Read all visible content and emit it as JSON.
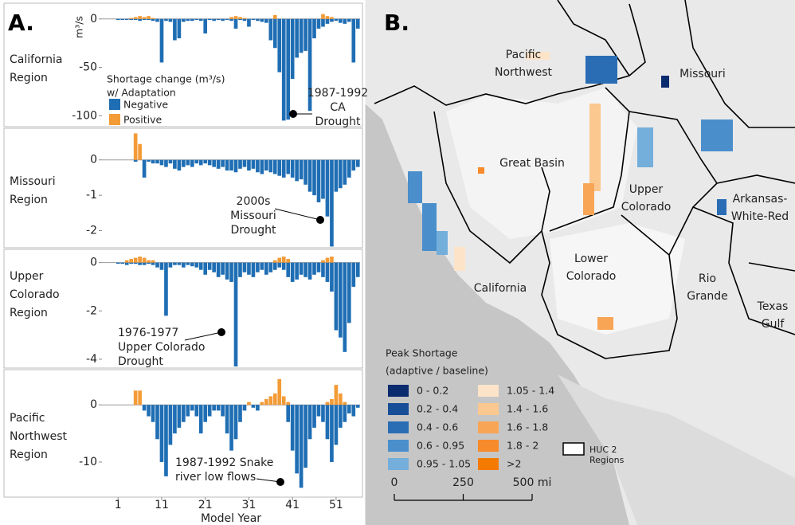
{
  "chart_data": [
    {
      "type": "bar",
      "panel_label": "A.",
      "region_label": [
        "California",
        "Region"
      ],
      "y_label": "m³/s",
      "legend_title": [
        "Shortage change (m³/s)",
        "w/ Adaptation"
      ],
      "xlim": [
        -2.7,
        56.5
      ],
      "ylim": [
        -108,
        13
      ],
      "yticks": [
        -100,
        -50,
        0
      ],
      "x": [
        1,
        2,
        3,
        4,
        5,
        6,
        7,
        8,
        9,
        10,
        11,
        12,
        13,
        14,
        15,
        16,
        17,
        18,
        19,
        20,
        21,
        22,
        23,
        24,
        25,
        26,
        27,
        28,
        29,
        30,
        31,
        32,
        33,
        34,
        35,
        36,
        37,
        38,
        39,
        40,
        41,
        42,
        43,
        44,
        45,
        46,
        47,
        48,
        49,
        50,
        51,
        52,
        53,
        54,
        55,
        56
      ],
      "series": [
        {
          "name": "Negative",
          "color": "#1f6eb4",
          "values": [
            -1,
            -1,
            -1,
            -1,
            -1,
            -2,
            -1,
            -1,
            -2,
            -3,
            -45,
            -2,
            -3,
            -22,
            -20,
            -3,
            -2,
            -2,
            -1,
            -2,
            -15,
            -1,
            -2,
            -1,
            -2,
            -1,
            -2,
            -10,
            -1,
            -2,
            -8,
            -1,
            -2,
            -3,
            -4,
            -22,
            -30,
            -55,
            -105,
            -104,
            -62,
            -40,
            -35,
            -33,
            -95,
            -20,
            -10,
            -8,
            -5,
            -3,
            -2,
            -4,
            -5,
            -3,
            -45,
            -10
          ]
        },
        {
          "name": "Positive",
          "color": "#f39b36",
          "values": [
            0,
            0,
            0,
            1,
            2,
            3,
            2,
            3,
            1,
            0,
            0,
            0,
            0,
            0,
            0,
            0,
            0,
            0,
            0,
            0,
            0,
            0,
            0,
            0,
            0,
            0,
            2,
            3,
            2,
            1,
            0,
            0,
            0,
            0,
            0,
            0,
            4,
            0,
            0,
            0,
            0,
            0,
            0,
            0,
            0,
            0,
            0,
            5,
            3,
            2,
            0,
            0,
            0,
            0,
            0,
            0
          ]
        }
      ],
      "annotations": [
        {
          "lines": [
            "1987-1992",
            "CA",
            "Drought"
          ]
        }
      ]
    },
    {
      "type": "bar",
      "region_label": [
        "Missouri",
        "Region"
      ],
      "xlim": [
        -2.7,
        56.5
      ],
      "ylim": [
        -2.35,
        0.85
      ],
      "yticks": [
        -2,
        -1,
        0
      ],
      "x": [
        1,
        2,
        3,
        4,
        5,
        6,
        7,
        8,
        9,
        10,
        11,
        12,
        13,
        14,
        15,
        16,
        17,
        18,
        19,
        20,
        21,
        22,
        23,
        24,
        25,
        26,
        27,
        28,
        29,
        30,
        31,
        32,
        33,
        34,
        35,
        36,
        37,
        38,
        39,
        40,
        41,
        42,
        43,
        44,
        45,
        46,
        47,
        48,
        49,
        50,
        51,
        52,
        53,
        54,
        55,
        56
      ],
      "series": [
        {
          "color": "#1f6eb4",
          "values": [
            0,
            0,
            0,
            0,
            -0.05,
            0,
            -0.5,
            -0.05,
            -0.1,
            -0.1,
            -0.15,
            -0.2,
            -0.1,
            -0.25,
            -0.3,
            -0.2,
            -0.15,
            -0.2,
            -0.1,
            -0.15,
            -0.1,
            -0.15,
            -0.2,
            -0.25,
            -0.2,
            -0.3,
            -0.3,
            -0.35,
            -0.25,
            -0.2,
            -0.3,
            -0.25,
            -0.35,
            -0.4,
            -0.3,
            -0.35,
            -0.4,
            -0.45,
            -0.5,
            -0.4,
            -0.5,
            -0.6,
            -0.55,
            -0.7,
            -0.9,
            -1.0,
            -1.2,
            -1.1,
            -1.6,
            -2.45,
            -0.9,
            -0.8,
            -0.7,
            -0.5,
            -0.3,
            -0.2
          ]
        },
        {
          "color": "#f39b36",
          "values": [
            0,
            0,
            0,
            0,
            0.75,
            0.45,
            0,
            0,
            0,
            0,
            0,
            0,
            0,
            0,
            0,
            0,
            0,
            0,
            0,
            0,
            0,
            0,
            0,
            0,
            0,
            0,
            0,
            0,
            0,
            0,
            0,
            0,
            0,
            0,
            0,
            0,
            0,
            0,
            0,
            0,
            0,
            0,
            0,
            0,
            0,
            0,
            0,
            0,
            0,
            0,
            0,
            0,
            0,
            0,
            0,
            0
          ]
        }
      ],
      "annotations": [
        {
          "lines": [
            "2000s",
            "Missouri",
            "Drought"
          ]
        }
      ]
    },
    {
      "type": "bar",
      "region_label": [
        "Upper",
        "Colorado",
        "Region"
      ],
      "xlim": [
        -2.7,
        56.5
      ],
      "ylim": [
        -4.3,
        0.45
      ],
      "yticks": [
        -4,
        -2,
        0
      ],
      "x": [
        1,
        2,
        3,
        4,
        5,
        6,
        7,
        8,
        9,
        10,
        11,
        12,
        13,
        14,
        15,
        16,
        17,
        18,
        19,
        20,
        21,
        22,
        23,
        24,
        25,
        26,
        27,
        28,
        29,
        30,
        31,
        32,
        33,
        34,
        35,
        36,
        37,
        38,
        39,
        40,
        41,
        42,
        43,
        44,
        45,
        46,
        47,
        48,
        49,
        50,
        51,
        52,
        53,
        54,
        55,
        56
      ],
      "series": [
        {
          "color": "#1f6eb4",
          "values": [
            -0.05,
            -0.05,
            -0.1,
            -0.05,
            -0.05,
            -0.1,
            -0.1,
            -0.05,
            -0.1,
            -0.2,
            -0.3,
            -2.2,
            -0.2,
            -0.1,
            -0.1,
            -0.2,
            -0.1,
            -0.15,
            -0.2,
            -0.3,
            -0.5,
            -0.3,
            -0.4,
            -0.6,
            -0.5,
            -0.7,
            -0.8,
            -4.3,
            -0.6,
            -0.4,
            -0.5,
            -0.6,
            -0.4,
            -0.3,
            -0.5,
            -0.4,
            -0.3,
            -0.2,
            -0.3,
            -0.6,
            -0.8,
            -0.7,
            -0.5,
            -0.6,
            -0.7,
            -0.5,
            -0.4,
            -0.6,
            -0.8,
            -1.2,
            -2.8,
            -3.1,
            -3.7,
            -2.5,
            -1.0,
            -0.6
          ]
        },
        {
          "color": "#f39b36",
          "values": [
            0,
            0,
            0.1,
            0.15,
            0.2,
            0.25,
            0.2,
            0.1,
            0.1,
            0,
            0,
            0,
            0,
            0,
            0,
            0,
            0,
            0,
            0,
            0,
            0,
            0,
            0,
            0,
            0,
            0,
            0,
            0,
            0,
            0,
            0,
            0,
            0,
            0,
            0,
            0,
            0.1,
            0.2,
            0.25,
            0.15,
            0,
            0,
            0,
            0,
            0,
            0,
            0,
            0.1,
            0.2,
            0.25,
            0,
            0,
            0,
            0,
            0,
            0
          ]
        }
      ],
      "annotations": [
        {
          "lines": [
            "1976-1977",
            "Upper Colorado",
            "Drought"
          ]
        }
      ]
    },
    {
      "type": "bar",
      "region_label": [
        "Pacific",
        "Northwest",
        "Region"
      ],
      "x_label": "Model Year",
      "xlim": [
        -2.7,
        56.5
      ],
      "ylim": [
        -15.3,
        5.6
      ],
      "yticks": [
        -10,
        0
      ],
      "xticks": [
        1,
        11,
        21,
        31,
        41,
        51
      ],
      "x": [
        1,
        2,
        3,
        4,
        5,
        6,
        7,
        8,
        9,
        10,
        11,
        12,
        13,
        14,
        15,
        16,
        17,
        18,
        19,
        20,
        21,
        22,
        23,
        24,
        25,
        26,
        27,
        28,
        29,
        30,
        31,
        32,
        33,
        34,
        35,
        36,
        37,
        38,
        39,
        40,
        41,
        42,
        43,
        44,
        45,
        46,
        47,
        48,
        49,
        50,
        51,
        52,
        53,
        54,
        55,
        56
      ],
      "series": [
        {
          "color": "#1f6eb4",
          "values": [
            0,
            0,
            0,
            0,
            0,
            0,
            -1,
            -2,
            -3,
            -6,
            -10,
            -12.5,
            -7,
            -5,
            -4,
            -3,
            -2,
            -1,
            -2,
            -5,
            -3,
            -2,
            -1,
            -1,
            -2,
            -5,
            -8,
            -6,
            -3,
            -1,
            0,
            -0.5,
            -1,
            0,
            0,
            0,
            0,
            0,
            0,
            -3,
            -8,
            -12,
            -14.5,
            -11,
            -6,
            -4,
            -2,
            -3,
            -6,
            -10,
            -7,
            -4,
            -3,
            -1.5,
            -2,
            -0.5
          ]
        },
        {
          "color": "#f39b36",
          "values": [
            0,
            0,
            0,
            0,
            2.5,
            2.5,
            0,
            0,
            0,
            0,
            0,
            0,
            0,
            0,
            0,
            0,
            0,
            0,
            0,
            0,
            0,
            0,
            0,
            0,
            0,
            0,
            0,
            0,
            0,
            0,
            0.5,
            0,
            0,
            0.5,
            1,
            1.5,
            2,
            4.5,
            1.5,
            0.5,
            0,
            0,
            0,
            0,
            0,
            0,
            0,
            0,
            0.5,
            1,
            3.5,
            2,
            0.5,
            0,
            0,
            0
          ]
        }
      ],
      "annotations": [
        {
          "lines": [
            "1987-1992 Snake",
            "river low flows"
          ]
        }
      ]
    }
  ],
  "map": {
    "panel_label": "B.",
    "regions": [
      {
        "lines": [
          "Pacific",
          "Northwest"
        ]
      },
      {
        "lines": [
          "Missouri"
        ]
      },
      {
        "lines": [
          "Great Basin"
        ]
      },
      {
        "lines": [
          "Upper",
          "Colorado"
        ]
      },
      {
        "lines": [
          "Arkansas-",
          "White-Red"
        ]
      },
      {
        "lines": [
          "California"
        ]
      },
      {
        "lines": [
          "Lower",
          "Colorado"
        ]
      },
      {
        "lines": [
          "Rio",
          "Grande"
        ]
      },
      {
        "lines": [
          "Texas",
          "Gulf"
        ]
      }
    ],
    "legend": {
      "title": [
        "Peak Shortage",
        "(adaptive / baseline)"
      ],
      "entries": [
        {
          "label": "0 - 0.2",
          "color": "#0b2b6f"
        },
        {
          "label": "0.2 - 0.4",
          "color": "#164f97"
        },
        {
          "label": "0.4 - 0.6",
          "color": "#2a6db5"
        },
        {
          "label": "0.6 - 0.95",
          "color": "#4a8fcc"
        },
        {
          "label": "0.95 - 1.05",
          "color": "#74aedb"
        },
        {
          "label": "1.05 - 1.4",
          "color": "#fde3c8"
        },
        {
          "label": "1.4 - 1.6",
          "color": "#fbc890"
        },
        {
          "label": "1.6 - 1.8",
          "color": "#f9a556"
        },
        {
          "label": "1.8 - 2",
          "color": "#f78a2a"
        },
        {
          "label": ">2",
          "color": "#f57a00"
        }
      ]
    },
    "huc_label": [
      "HUC 2",
      "Regions"
    ],
    "scale": {
      "max": 500,
      "ticks": [
        0,
        250,
        {
          "value": 500,
          "label": "500 mi"
        }
      ]
    }
  }
}
